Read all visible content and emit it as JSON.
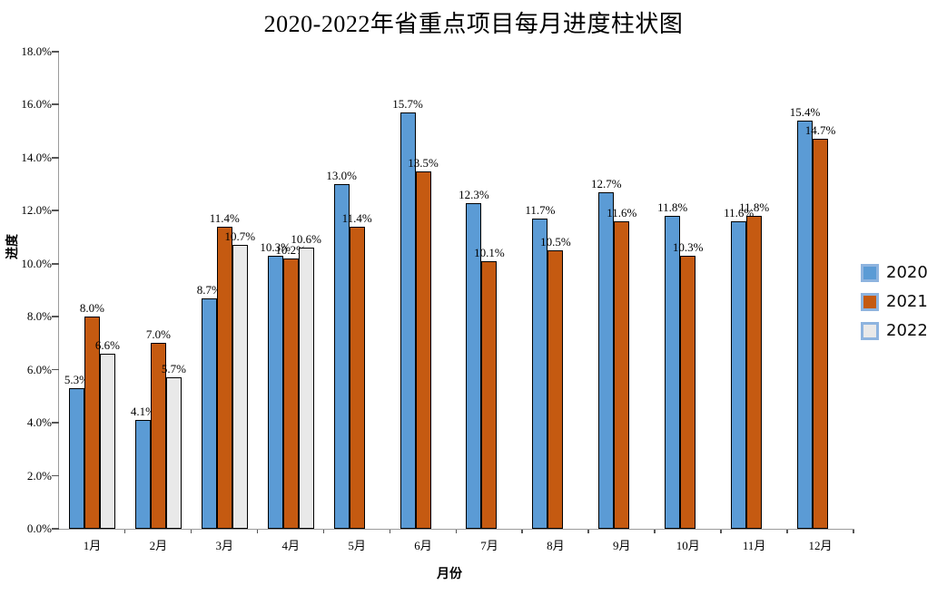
{
  "chart_data": {
    "type": "bar",
    "title": "2020-2022年省重点项目每月进度柱状图",
    "xlabel": "月份",
    "ylabel": "进度",
    "ylim": [
      0,
      18
    ],
    "ytick_step": 2,
    "ytick_format": "one_decimal_percent",
    "grid": "off",
    "legend_position": "right",
    "categories": [
      "1月",
      "2月",
      "3月",
      "4月",
      "5月",
      "6月",
      "7月",
      "8月",
      "9月",
      "10月",
      "11月",
      "12月"
    ],
    "series": [
      {
        "name": "2020",
        "color": "#5B9BD5",
        "values": [
          5.3,
          4.1,
          8.7,
          10.3,
          13.0,
          15.7,
          12.3,
          11.7,
          12.7,
          11.8,
          11.6,
          15.4
        ]
      },
      {
        "name": "2021",
        "color": "#C55A11",
        "values": [
          8.0,
          7.0,
          11.4,
          10.2,
          11.4,
          13.5,
          10.1,
          10.5,
          11.6,
          10.3,
          11.8,
          14.7
        ]
      },
      {
        "name": "2022",
        "color": "#E9E9E9",
        "values": [
          6.6,
          5.7,
          10.7,
          10.6,
          null,
          null,
          null,
          null,
          null,
          null,
          null,
          null
        ]
      }
    ],
    "data_labels": {
      "2020": [
        "5.3%",
        "4.1%",
        "8.7%",
        "10.3%",
        "13.0%",
        "15.7%",
        "12.3%",
        "11.7%",
        "12.7%",
        "11.8%",
        "11.6%",
        "15.4%"
      ],
      "2021": [
        "8.0%",
        "7.0%",
        "11.4%",
        "10.2%",
        "11.4%",
        "13.5%",
        "10.1%",
        "10.5%",
        "11.6%",
        "10.3%",
        "11.8%",
        "14.7%"
      ],
      "2022": [
        "6.6%",
        "5.7%",
        "10.7%",
        "10.6%"
      ]
    },
    "colors": {
      "bar_border": "#000000",
      "legend_swatch_border": "#8EB4DF",
      "axis_line": "#9B9B9B",
      "tick_mark": "#555555",
      "text": "#000000"
    }
  }
}
